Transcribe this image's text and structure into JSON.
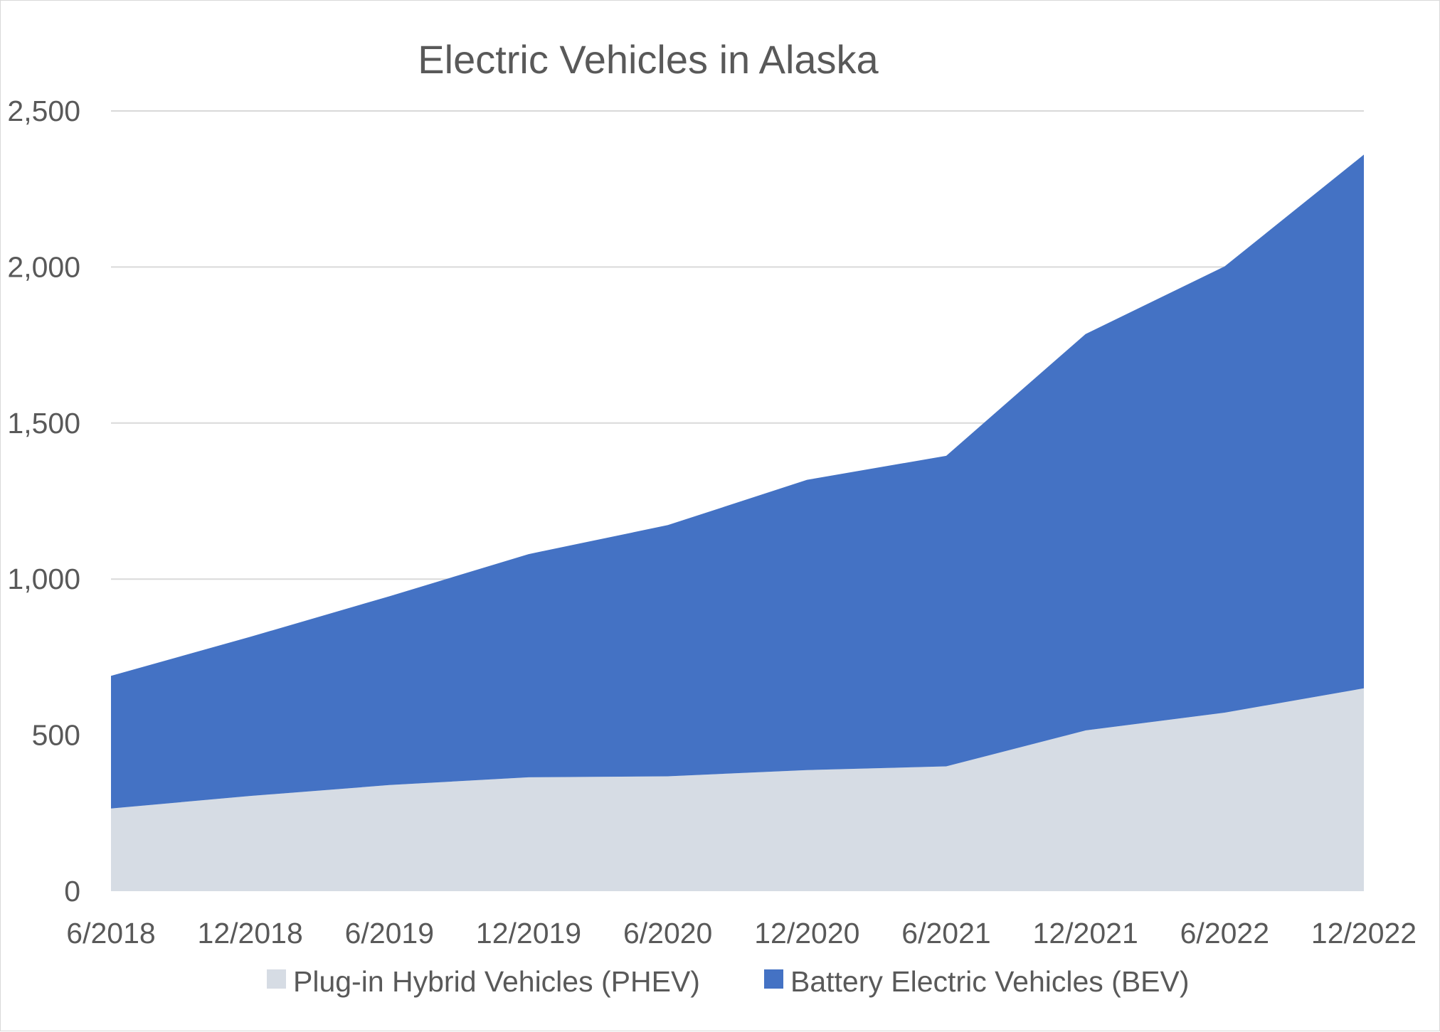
{
  "chart_data": {
    "type": "area",
    "stacked": true,
    "title": "Electric Vehicles in Alaska",
    "xlabel": "",
    "ylabel": "",
    "x": [
      "6/2018",
      "12/2018",
      "6/2019",
      "12/2019",
      "6/2020",
      "12/2020",
      "6/2021",
      "12/2021",
      "6/2022",
      "12/2022"
    ],
    "ylim": [
      0,
      2500
    ],
    "yticks": [
      "0",
      "500",
      "1,000",
      "1,500",
      "2,000",
      "2,500"
    ],
    "ytick_values": [
      0,
      500,
      1000,
      1500,
      2000,
      2500
    ],
    "grid": true,
    "legend_position": "bottom",
    "series": [
      {
        "name": "Plug-in Hybrid Vehicles (PHEV)",
        "color": "#d6dce4",
        "values": [
          265,
          305,
          340,
          365,
          368,
          388,
          400,
          515,
          572,
          650
        ]
      },
      {
        "name": "Battery Electric Vehicles (BEV)",
        "color": "#4472c4",
        "values": [
          425,
          510,
          605,
          715,
          805,
          930,
          995,
          1270,
          1430,
          1710
        ]
      }
    ]
  }
}
